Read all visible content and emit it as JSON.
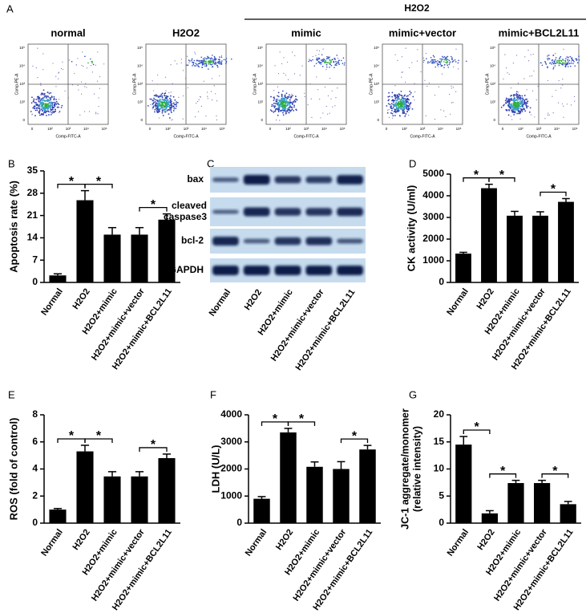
{
  "flow_cytometry": {
    "label": "A",
    "group_label": "H2O2",
    "panels": [
      "normal",
      "H2O2",
      "mimic",
      "mimic+vector",
      "mimic+BCL2L11"
    ],
    "x_axis_label": "Comp-FITC-A",
    "y_axis_label": "Comp-PE-A",
    "tick_labels": [
      "0",
      "10²",
      "10³",
      "10⁴",
      "10⁵"
    ]
  },
  "western_blot": {
    "label": "C",
    "proteins": [
      "bax",
      [
        "cleaved",
        "caspase3"
      ],
      "bcl-2",
      "GAPDH"
    ],
    "categories": [
      "Normal",
      "H2O2",
      "H2O2+mimic",
      "H2O2+mimic+vector",
      "H2O2+mimic+BCL2L11"
    ]
  },
  "chart_data": [
    {
      "type": "bar",
      "label": "B",
      "ylabel": "Apoptosis rate (%)",
      "color": "#000000",
      "categories": [
        "Normal",
        "H2O2",
        "H2O2+mimic",
        "H2O2+mimic+vector",
        "H2O2+mimic+BCL2L11"
      ],
      "values": [
        2.2,
        25.8,
        15,
        15,
        19.7
      ],
      "errors": [
        0.5,
        3,
        2.2,
        2.2,
        1.8
      ],
      "ylim": [
        0,
        35
      ],
      "yticks": [
        0,
        7,
        14,
        21,
        28,
        35
      ],
      "annotations": [
        {
          "text": "*",
          "between": [
            "Normal",
            "H2O2"
          ]
        },
        {
          "text": "*",
          "between": [
            "H2O2",
            "H2O2+mimic"
          ]
        },
        {
          "text": "*",
          "between": [
            "H2O2+mimic+vector",
            "H2O2+mimic+BCL2L11"
          ]
        }
      ]
    },
    {
      "type": "bar",
      "label": "D",
      "ylabel": "CK activity (U/ml)",
      "color": "#000000",
      "categories": [
        "Normal",
        "H2O2",
        "H2O2+mimic",
        "H2O2+mimic+vector",
        "H2O2+mimic+BCL2L11"
      ],
      "values": [
        1330,
        4350,
        3080,
        3080,
        3720
      ],
      "errors": [
        60,
        180,
        200,
        180,
        150
      ],
      "ylim": [
        0,
        5000
      ],
      "yticks": [
        0,
        1000,
        2000,
        3000,
        4000,
        5000
      ],
      "annotations": [
        {
          "text": "*",
          "between": [
            "Normal",
            "H2O2"
          ]
        },
        {
          "text": "*",
          "between": [
            "H2O2",
            "H2O2+mimic"
          ]
        },
        {
          "text": "*",
          "between": [
            "H2O2+mimic+vector",
            "H2O2+mimic+BCL2L11"
          ]
        }
      ]
    },
    {
      "type": "bar",
      "label": "E",
      "ylabel": "ROS (fold of control)",
      "color": "#000000",
      "categories": [
        "Normal",
        "H2O2",
        "H2O2+mimic",
        "H2O2+mimic+vector",
        "H2O2+mimic+BCL2L11"
      ],
      "values": [
        1.0,
        5.3,
        3.45,
        3.45,
        4.8
      ],
      "errors": [
        0.08,
        0.45,
        0.35,
        0.35,
        0.3
      ],
      "ylim": [
        0,
        8
      ],
      "yticks": [
        0,
        2,
        4,
        6,
        8
      ],
      "annotations": [
        {
          "text": "*",
          "between": [
            "Normal",
            "H2O2"
          ]
        },
        {
          "text": "*",
          "between": [
            "H2O2",
            "H2O2+mimic"
          ]
        },
        {
          "text": "*",
          "between": [
            "H2O2+mimic+vector",
            "H2O2+mimic+BCL2L11"
          ]
        }
      ]
    },
    {
      "type": "bar",
      "label": "F",
      "ylabel": "LDH (U/L)",
      "color": "#000000",
      "categories": [
        "Normal",
        "H2O2",
        "H2O2+mimic",
        "H2O2+mimic+vector",
        "H2O2+mimic+BCL2L11"
      ],
      "values": [
        900,
        3350,
        2080,
        2000,
        2720
      ],
      "errors": [
        80,
        150,
        180,
        270,
        150
      ],
      "ylim": [
        0,
        4000
      ],
      "yticks": [
        0,
        1000,
        2000,
        3000,
        4000
      ],
      "annotations": [
        {
          "text": "*",
          "between": [
            "Normal",
            "H2O2"
          ]
        },
        {
          "text": "*",
          "between": [
            "H2O2",
            "H2O2+mimic"
          ]
        },
        {
          "text": "*",
          "between": [
            "H2O2+mimic+vector",
            "H2O2+mimic+BCL2L11"
          ]
        }
      ]
    },
    {
      "type": "bar",
      "label": "G",
      "ylabel": [
        "JC-1 aggregate/monomer",
        "(relative intensity)"
      ],
      "color": "#000000",
      "categories": [
        "Normal",
        "H2O2",
        "H2O2+mimic",
        "H2O2+mimic+vector",
        "H2O2+mimic+BCL2L11"
      ],
      "values": [
        14.5,
        1.8,
        7.4,
        7.4,
        3.5
      ],
      "errors": [
        1.5,
        0.5,
        0.5,
        0.5,
        0.5
      ],
      "ylim": [
        0,
        20
      ],
      "yticks": [
        0,
        5,
        10,
        15,
        20
      ],
      "annotations": [
        {
          "text": "*",
          "between": [
            "Normal",
            "H2O2"
          ]
        },
        {
          "text": "*",
          "between": [
            "H2O2",
            "H2O2+mimic"
          ]
        },
        {
          "text": "*",
          "between": [
            "H2O2+mimic+vector",
            "H2O2+mimic+BCL2L11"
          ]
        }
      ]
    }
  ]
}
